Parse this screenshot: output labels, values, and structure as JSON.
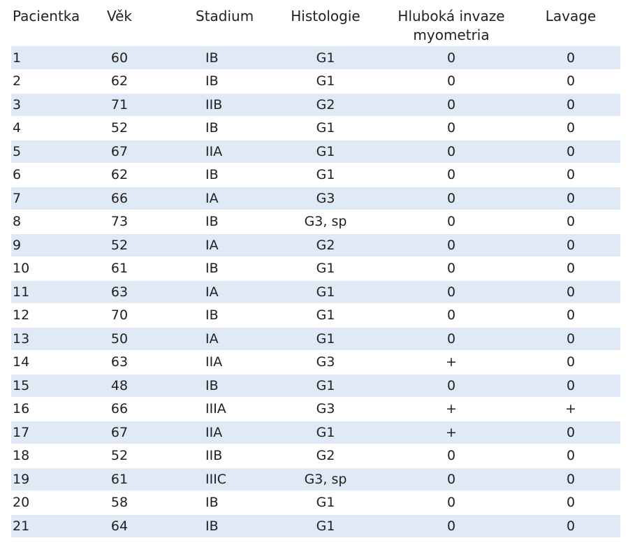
{
  "table": {
    "headers": [
      "Pacientka",
      "Věk",
      "Stadium",
      "Histologie",
      "Hluboká invaze myometria",
      "Lavage"
    ],
    "rows": [
      [
        "1",
        "60",
        "IB",
        "G1",
        "0",
        "0"
      ],
      [
        "2",
        "62",
        "IB",
        "G1",
        "0",
        "0"
      ],
      [
        "3",
        "71",
        "IIB",
        "G2",
        "0",
        "0"
      ],
      [
        "4",
        "52",
        "IB",
        "G1",
        "0",
        "0"
      ],
      [
        "5",
        "67",
        "IIA",
        "G1",
        "0",
        "0"
      ],
      [
        "6",
        "62",
        "IB",
        "G1",
        "0",
        "0"
      ],
      [
        "7",
        "66",
        "IA",
        "G3",
        "0",
        "0"
      ],
      [
        "8",
        "73",
        "IB",
        "G3, sp",
        "0",
        "0"
      ],
      [
        "9",
        "52",
        "IA",
        "G2",
        "0",
        "0"
      ],
      [
        "10",
        "61",
        "IB",
        "G1",
        "0",
        "0"
      ],
      [
        "11",
        "63",
        "IA",
        "G1",
        "0",
        "0"
      ],
      [
        "12",
        "70",
        "IB",
        "G1",
        "0",
        "0"
      ],
      [
        "13",
        "50",
        "IA",
        "G1",
        "0",
        "0"
      ],
      [
        "14",
        "63",
        "IIA",
        "G3",
        "+",
        "0"
      ],
      [
        "15",
        "48",
        "IB",
        "G1",
        "0",
        "0"
      ],
      [
        "16",
        "66",
        "IIIA",
        "G3",
        "+",
        "+"
      ],
      [
        "17",
        "67",
        "IIA",
        "G1",
        "+",
        "0"
      ],
      [
        "18",
        "52",
        "IIB",
        "G2",
        "0",
        "0"
      ],
      [
        "19",
        "61",
        "IIIC",
        "G3, sp",
        "0",
        "0"
      ],
      [
        "20",
        "58",
        "IB",
        "G1",
        "0",
        "0"
      ],
      [
        "21",
        "64",
        "IB",
        "G1",
        "0",
        "0"
      ]
    ]
  },
  "colors": {
    "stripe": "#dfeaf6",
    "text": "#231f20"
  }
}
